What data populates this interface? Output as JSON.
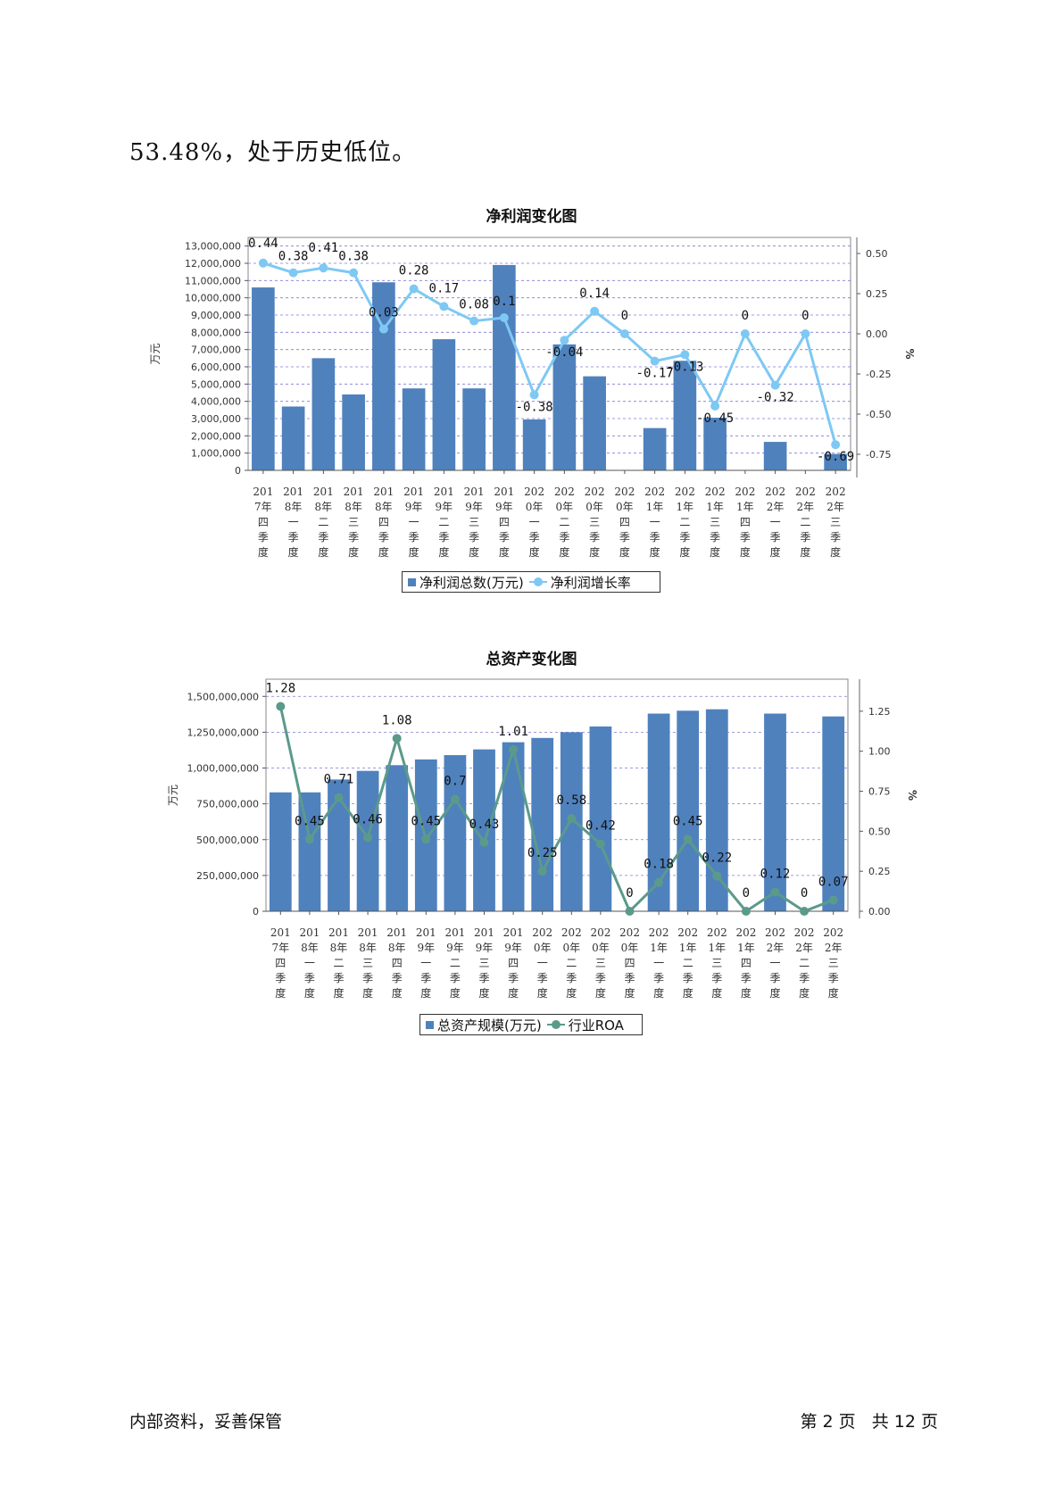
{
  "intro_text": "53.48%，处于历史低位。",
  "footer": {
    "left": "内部资料，妥善保管",
    "right": "第 2 页   共 12 页"
  },
  "categories": [
    "2017年四季度",
    "2018年一季度",
    "2018年二季度",
    "2018年三季度",
    "2018年四季度",
    "2019年一季度",
    "2019年二季度",
    "2019年三季度",
    "2019年四季度",
    "2020年一季度",
    "2020年二季度",
    "2020年三季度",
    "2020年四季度",
    "2021年一季度",
    "2021年二季度",
    "2021年三季度",
    "2021年四季度",
    "2022年一季度",
    "2022年二季度",
    "2022年三季度"
  ],
  "category_line1": [
    "201",
    "201",
    "201",
    "201",
    "201",
    "201",
    "201",
    "201",
    "201",
    "202",
    "202",
    "202",
    "202",
    "202",
    "202",
    "202",
    "202",
    "202",
    "202",
    "202"
  ],
  "category_line2": [
    "7年",
    "8年",
    "8年",
    "8年",
    "8年",
    "9年",
    "9年",
    "9年",
    "9年",
    "0年",
    "0年",
    "0年",
    "0年",
    "1年",
    "1年",
    "1年",
    "1年",
    "2年",
    "2年",
    "2年"
  ],
  "category_line3": [
    "四",
    "一",
    "二",
    "三",
    "四",
    "一",
    "二",
    "三",
    "四",
    "一",
    "二",
    "三",
    "四",
    "一",
    "二",
    "三",
    "四",
    "一",
    "二",
    "三"
  ],
  "category_line4": [
    "季",
    "季",
    "季",
    "季",
    "季",
    "季",
    "季",
    "季",
    "季",
    "季",
    "季",
    "季",
    "季",
    "季",
    "季",
    "季",
    "季",
    "季",
    "季",
    "季"
  ],
  "category_line5": [
    "度",
    "度",
    "度",
    "度",
    "度",
    "度",
    "度",
    "度",
    "度",
    "度",
    "度",
    "度",
    "度",
    "度",
    "度",
    "度",
    "度",
    "度",
    "度",
    "度"
  ],
  "chart_data": [
    {
      "type": "bar+line",
      "title": "净利润变化图",
      "ylabel": "万元",
      "y2label": "%",
      "ylim": [
        0,
        13500000
      ],
      "y2lim": [
        -0.85,
        0.6
      ],
      "yticks": [
        0,
        1000000,
        2000000,
        3000000,
        4000000,
        5000000,
        6000000,
        7000000,
        8000000,
        9000000,
        10000000,
        11000000,
        12000000,
        13000000
      ],
      "yticklabels": [
        "0",
        "1,000,000",
        "2,000,000",
        "3,000,000",
        "4,000,000",
        "5,000,000",
        "6,000,000",
        "7,000,000",
        "8,000,000",
        "9,000,000",
        "10,000,000",
        "11,000,000",
        "12,000,000",
        "13,000,000"
      ],
      "y2ticks": [
        0.5,
        0.25,
        0,
        -0.25,
        -0.5,
        -0.75
      ],
      "y2ticklabels": [
        "0.50",
        "0.25",
        "0.00",
        "-0.25",
        "-0.50",
        "-0.75"
      ],
      "grid": true,
      "legend_position": "bottom",
      "series": [
        {
          "name": "净利润总数(万元)",
          "type": "bar",
          "axis": "left",
          "color": "#4f81bd",
          "values": [
            10600000,
            3700000,
            6500000,
            4400000,
            10900000,
            4750000,
            7600000,
            4750000,
            11900000,
            2950000,
            7300000,
            5450000,
            0,
            2450000,
            6350000,
            3050000,
            0,
            1650000,
            0,
            950000
          ]
        },
        {
          "name": "净利润增长率",
          "type": "line",
          "axis": "right",
          "color": "#7ec8f4",
          "values": [
            0.44,
            0.38,
            0.41,
            0.38,
            0.03,
            0.28,
            0.17,
            0.08,
            0.1,
            -0.38,
            -0.04,
            0.14,
            0,
            -0.17,
            -0.13,
            -0.45,
            0,
            -0.32,
            0,
            -0.69
          ],
          "labels": [
            "0.44",
            "0.38",
            "0.41",
            "0.38",
            "0.03",
            "0.28",
            "0.17",
            "0.08",
            "0.1",
            "-0.38",
            "-0.04",
            "0.14",
            "0",
            "-0.17",
            "-0.13",
            "-0.45",
            "0",
            "-0.32",
            "0",
            "-0.69"
          ]
        }
      ]
    },
    {
      "type": "bar+line",
      "title": "总资产变化图",
      "ylabel": "万元",
      "y2label": "%",
      "ylim": [
        0,
        1620000000
      ],
      "y2lim": [
        0,
        1.45
      ],
      "yticks": [
        0,
        250000000,
        500000000,
        750000000,
        1000000000,
        1250000000,
        1500000000
      ],
      "yticklabels": [
        "0",
        "250,000,000",
        "500,000,000",
        "750,000,000",
        "1,000,000,000",
        "1,250,000,000",
        "1,500,000,000"
      ],
      "y2ticks": [
        0,
        0.25,
        0.5,
        0.75,
        1.0,
        1.25
      ],
      "y2ticklabels": [
        "0.00",
        "0.25",
        "0.50",
        "0.75",
        "1.00",
        "1.25"
      ],
      "grid": true,
      "legend_position": "bottom",
      "series": [
        {
          "name": "总资产规模(万元)",
          "type": "bar",
          "axis": "left",
          "color": "#4f81bd",
          "values": [
            830000000,
            830000000,
            920000000,
            980000000,
            1020000000,
            1060000000,
            1090000000,
            1130000000,
            1180000000,
            1210000000,
            1250000000,
            1290000000,
            0,
            1380000000,
            1400000000,
            1410000000,
            0,
            1380000000,
            0,
            1360000000
          ]
        },
        {
          "name": "行业ROA",
          "type": "line",
          "axis": "right",
          "color": "#5b9a8b",
          "values": [
            1.28,
            0.45,
            0.71,
            0.46,
            1.08,
            0.45,
            0.7,
            0.43,
            1.01,
            0.25,
            0.58,
            0.42,
            0,
            0.18,
            0.45,
            0.22,
            0,
            0.12,
            0,
            0.07
          ],
          "labels": [
            "1.28",
            "0.45",
            "0.71",
            "0.46",
            "1.08",
            "0.45",
            "0.7",
            "0.43",
            "1.01",
            "0.25",
            "0.58",
            "0.42",
            "0",
            "0.18",
            "0.45",
            "0.22",
            "0",
            "0.12",
            "0",
            "0.07"
          ]
        }
      ]
    }
  ]
}
